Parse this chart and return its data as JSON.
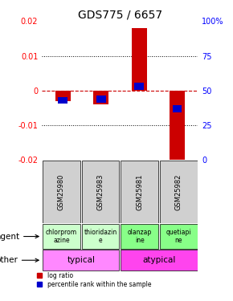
{
  "title": "GDS775 / 6657",
  "samples": [
    "GSM25980",
    "GSM25983",
    "GSM25981",
    "GSM25982"
  ],
  "log_ratio": [
    -0.003,
    -0.004,
    0.018,
    -0.0205
  ],
  "percentile": [
    43,
    44,
    53,
    37
  ],
  "ylim": [
    -0.02,
    0.02
  ],
  "yticks_left": [
    -0.02,
    -0.01,
    0,
    0.01,
    0.02
  ],
  "right_labels": [
    "0",
    "25",
    "50",
    "75",
    "100%"
  ],
  "agent_labels": [
    "chlorprom\nazine",
    "thioridazin\ne",
    "olanzap\nine",
    "quetiapi\nne"
  ],
  "agent_colors": [
    "#ccffcc",
    "#ccffcc",
    "#88ff88",
    "#88ff88"
  ],
  "typical_color": "#ff88ff",
  "atypical_color": "#ff44ee",
  "bar_color_red": "#cc0000",
  "bar_color_blue": "#0000cc",
  "zero_line_color": "#cc0000",
  "bg_color": "#ffffff",
  "label_agent": "agent",
  "label_other": "other",
  "legend_log": "log ratio",
  "legend_pct": "percentile rank within the sample",
  "title_fontsize": 10,
  "tick_fontsize": 7,
  "sample_fontsize": 6,
  "cell_fontsize": 5.5,
  "label_fontsize": 7.5
}
